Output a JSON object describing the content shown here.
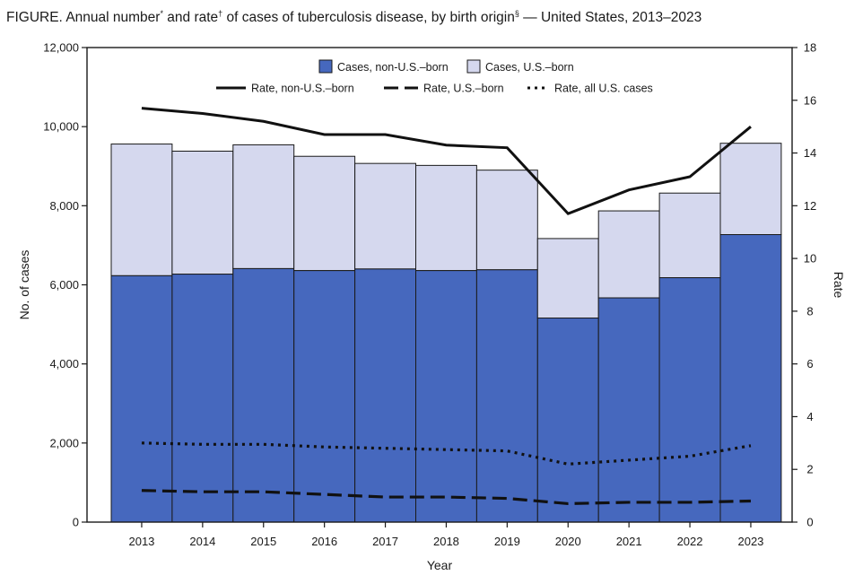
{
  "title": {
    "part1": "FIGURE. Annual number",
    "mark1": "*",
    "part2": " and rate",
    "mark2": "†",
    "part3": " of cases of tuberculosis disease, by birth origin",
    "mark3": "§",
    "part4": " — United States, 2013–2023"
  },
  "chart_data": {
    "type": "bar",
    "stacked": true,
    "categories": [
      "2013",
      "2014",
      "2015",
      "2016",
      "2017",
      "2018",
      "2019",
      "2020",
      "2021",
      "2022",
      "2023"
    ],
    "xlabel": "Year",
    "ylabel": "No. of cases",
    "y2label": "Rate",
    "ylim": [
      0,
      12000
    ],
    "y2lim": [
      0,
      18
    ],
    "yticks": [
      "0",
      "2,000",
      "4,000",
      "6,000",
      "8,000",
      "10,000",
      "12,000"
    ],
    "y2ticks": [
      "0",
      "2",
      "4",
      "6",
      "8",
      "10",
      "12",
      "14",
      "16",
      "18"
    ],
    "grid": false,
    "legend_position": "top",
    "bar_series": [
      {
        "name": "Cases, non-U.S.–born",
        "color": "#4668be",
        "values": [
          6230,
          6270,
          6410,
          6360,
          6400,
          6360,
          6380,
          5160,
          5670,
          6180,
          7270
        ]
      },
      {
        "name": "Cases, U.S.–born",
        "color": "#d5d8ee",
        "values": [
          3330,
          3110,
          3130,
          2890,
          2670,
          2660,
          2520,
          2010,
          2200,
          2140,
          2310
        ]
      }
    ],
    "line_series": [
      {
        "name": "Rate, non-U.S.–born",
        "style": "solid",
        "axis": "right",
        "values": [
          15.7,
          15.5,
          15.2,
          14.7,
          14.7,
          14.3,
          14.2,
          11.7,
          12.6,
          13.1,
          15.0
        ]
      },
      {
        "name": "Rate, U.S.–born",
        "style": "dashed",
        "axis": "right",
        "values": [
          1.2,
          1.15,
          1.15,
          1.05,
          0.95,
          0.95,
          0.9,
          0.7,
          0.75,
          0.75,
          0.8
        ]
      },
      {
        "name": "Rate, all U.S. cases",
        "style": "dotted",
        "axis": "right",
        "values": [
          3.0,
          2.95,
          2.95,
          2.85,
          2.8,
          2.75,
          2.7,
          2.2,
          2.35,
          2.5,
          2.9
        ]
      }
    ]
  }
}
